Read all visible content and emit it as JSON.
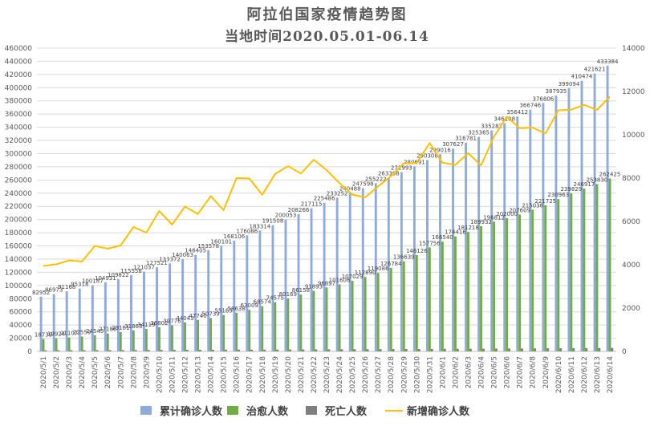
{
  "chart_data": {
    "type": "bar",
    "title": "阿拉伯国家疫情趋势图",
    "subtitle": "当地时间2020.05.01-06.14",
    "categories": [
      "2020/5/1",
      "2020/5/2",
      "2020/5/3",
      "2020/5/4",
      "2020/5/5",
      "2020/5/6",
      "2020/5/7",
      "2020/5/8",
      "2020/5/9",
      "2020/5/10",
      "2020/5/11",
      "2020/5/12",
      "2020/5/13",
      "2020/5/14",
      "2020/5/15",
      "2020/5/16",
      "2020/5/17",
      "2020/5/18",
      "2020/5/19",
      "2020/5/20",
      "2020/5/21",
      "2020/5/22",
      "2020/5/23",
      "2020/5/24",
      "2020/5/25",
      "2020/5/26",
      "2020/5/27",
      "2020/5/28",
      "2020/5/29",
      "2020/5/30",
      "2020/5/31",
      "2020/6/1",
      "2020/6/2",
      "2020/6/3",
      "2020/6/4",
      "2020/6/5",
      "2020/6/6",
      "2020/6/7",
      "2020/6/8",
      "2020/6/9",
      "2020/6/10",
      "2020/6/11",
      "2020/6/12",
      "2020/6/13",
      "2020/6/14"
    ],
    "y_left": {
      "min": 0,
      "max": 460000,
      "step": 20000
    },
    "y_right": {
      "min": 0,
      "max": 14000,
      "step": 2000
    },
    "series": [
      {
        "name": "累计确诊人数",
        "type": "bar",
        "axis": "left",
        "color": "#8faadc",
        "values": [
          82952,
          86973,
          91168,
          95318,
          100187,
          104931,
          109822,
          115558,
          121037,
          127521,
          133372,
          140063,
          146405,
          153578,
          160101,
          168106,
          176086,
          183314,
          191508,
          200053,
          208266,
          217115,
          225486,
          233252,
          240488,
          247598,
          255222,
          263308,
          271993,
          280691,
          290308,
          299016,
          307627,
          316781,
          325365,
          335282,
          346108,
          356412,
          366746,
          376806,
          387935,
          399094,
          410474,
          421621,
          433384
        ]
      },
      {
        "name": "治愈人数",
        "type": "bar",
        "axis": "left",
        "color": "#70ad47",
        "values": [
          18739,
          19924,
          21107,
          22559,
          24545,
          27186,
          29161,
          31863,
          34119,
          36802,
          39776,
          44043,
          47740,
          50739,
          55165,
          58638,
          63009,
          68574,
          74575,
          80169,
          86158,
          91893,
          96897,
          101606,
          107029,
          112890,
          119086,
          126784,
          136639,
          146126,
          157756,
          166540,
          174416,
          181218,
          189932,
          196812,
          202000,
          207609,
          215036,
          221725,
          230963,
          239829,
          246917,
          253830,
          262425
        ]
      },
      {
        "name": "死亡人数",
        "type": "bar",
        "axis": "left",
        "color": "#7f7f7f",
        "values": [
          1600,
          1660,
          1720,
          1780,
          1850,
          1910,
          1980,
          2050,
          2130,
          2200,
          2270,
          2350,
          2420,
          2490,
          2560,
          2640,
          2710,
          2790,
          2860,
          2940,
          3010,
          3090,
          3170,
          3250,
          3330,
          3410,
          3490,
          3570,
          3660,
          3750,
          3830,
          3920,
          4010,
          4100,
          4190,
          4280,
          4380,
          4480,
          4580,
          4680,
          4780,
          4890,
          4990,
          5100,
          5210
        ]
      },
      {
        "name": "新增确诊人数",
        "type": "line",
        "axis": "right",
        "color": "#ffc000",
        "values": [
          3950,
          4020,
          4200,
          4150,
          4870,
          4740,
          4890,
          5740,
          5480,
          6480,
          5850,
          6690,
          6340,
          7170,
          6520,
          8000,
          7980,
          7230,
          8190,
          8550,
          8210,
          8850,
          8370,
          7770,
          7240,
          7110,
          7620,
          8090,
          8690,
          8700,
          9620,
          8710,
          8610,
          9150,
          8590,
          9920,
          10830,
          10300,
          10330,
          10060,
          11130,
          11160,
          11380,
          11150,
          11760
        ]
      }
    ],
    "legend_position": "bottom",
    "grid": true
  }
}
